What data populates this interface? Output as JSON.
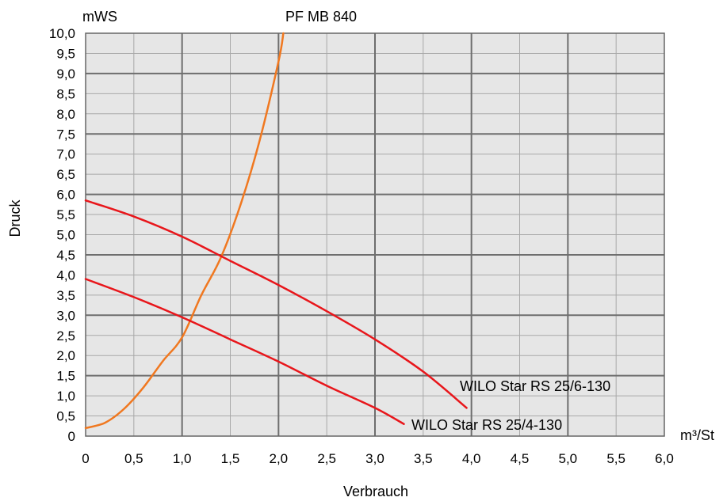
{
  "chart_data": {
    "type": "line",
    "title": "",
    "xlabel": "Verbrauch",
    "ylabel": "Druck",
    "y_unit": "mWS",
    "x_unit": "m³/St",
    "xlim": [
      0,
      6.0
    ],
    "ylim": [
      0,
      10.0
    ],
    "x_ticks": [
      "0",
      "0,5",
      "1,0",
      "1,5",
      "2,0",
      "2,5",
      "3,0",
      "3,5",
      "4,0",
      "4,5",
      "5,0",
      "5,5",
      "6,0"
    ],
    "y_ticks": [
      "0",
      "0,5",
      "1,0",
      "1,5",
      "2,0",
      "2,5",
      "3,0",
      "3,5",
      "4,0",
      "4,5",
      "5,0",
      "5,5",
      "6,0",
      "6,5",
      "7,0",
      "7,5",
      "8,0",
      "8,5",
      "9,0",
      "9,5",
      "10,0"
    ],
    "grid": true,
    "series": [
      {
        "name": "PF MB 840",
        "color": "#f07820",
        "x": [
          0,
          0.2,
          0.4,
          0.6,
          0.8,
          1.0,
          1.2,
          1.4,
          1.6,
          1.8,
          2.0,
          2.05
        ],
        "y": [
          0.2,
          0.33,
          0.68,
          1.21,
          1.86,
          2.45,
          3.5,
          4.42,
          5.7,
          7.3,
          9.3,
          10.0
        ]
      },
      {
        "name": "WILO Star RS 25/6-130",
        "color": "#e8161b",
        "x": [
          0,
          0.5,
          1.0,
          1.5,
          2.0,
          2.5,
          3.0,
          3.5,
          3.95
        ],
        "y": [
          5.85,
          5.45,
          4.95,
          4.35,
          3.75,
          3.1,
          2.4,
          1.6,
          0.7
        ]
      },
      {
        "name": "WILO Star RS 25/4-130",
        "color": "#e8161b",
        "x": [
          0,
          0.5,
          1.0,
          1.5,
          2.0,
          2.5,
          3.0,
          3.3
        ],
        "y": [
          3.9,
          3.45,
          2.95,
          2.4,
          1.85,
          1.25,
          0.7,
          0.3
        ]
      }
    ]
  }
}
